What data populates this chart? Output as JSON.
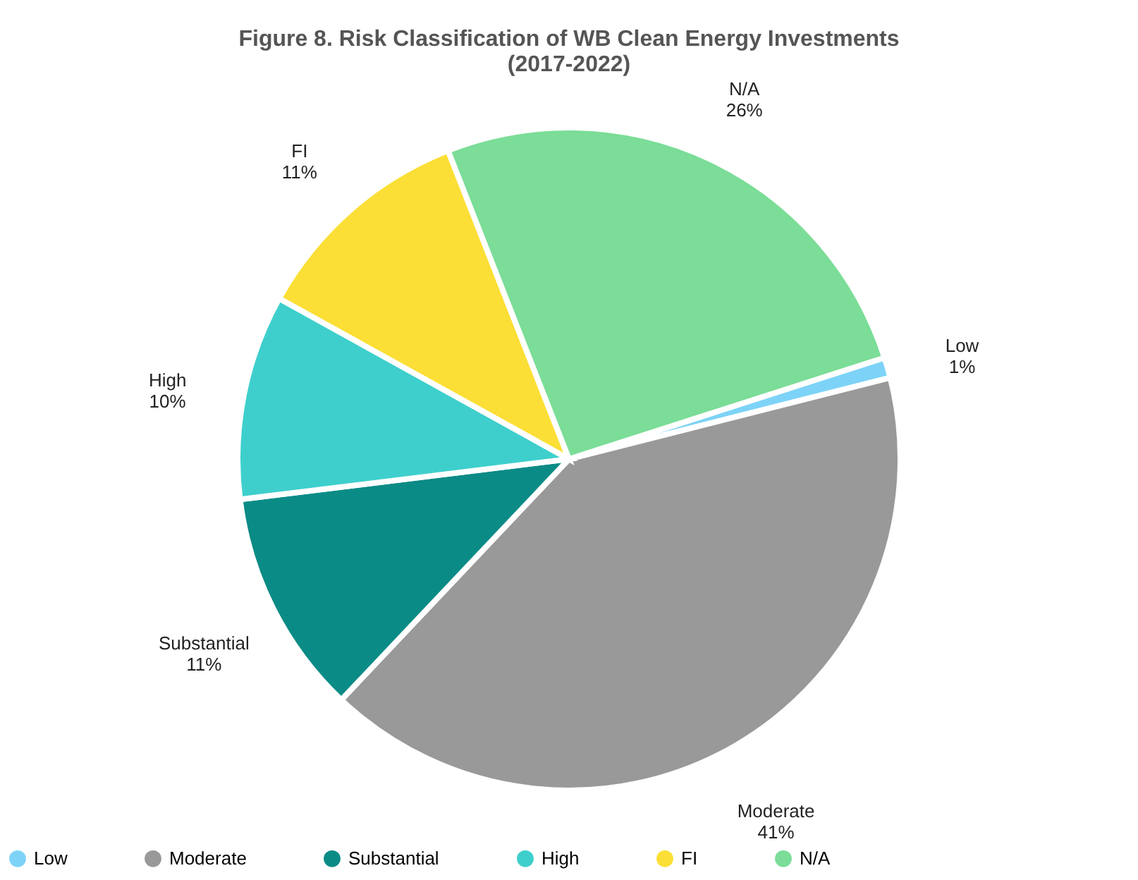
{
  "chart_data": {
    "type": "pie",
    "title": "Figure 8. Risk Classification of WB Clean Energy Investments\n(2017-2022)",
    "categories": [
      "Low",
      "Moderate",
      "Substantial",
      "High",
      "FI",
      "N/A"
    ],
    "values": [
      1,
      41,
      11,
      10,
      11,
      26
    ],
    "value_labels": [
      "1%",
      "41%",
      "11%",
      "10%",
      "11%",
      "26%"
    ],
    "colors": [
      "#7dd3f7",
      "#999999",
      "#0b8b86",
      "#3ecfcc",
      "#fbdf36",
      "#7bdd97"
    ],
    "legend": "bottom"
  }
}
